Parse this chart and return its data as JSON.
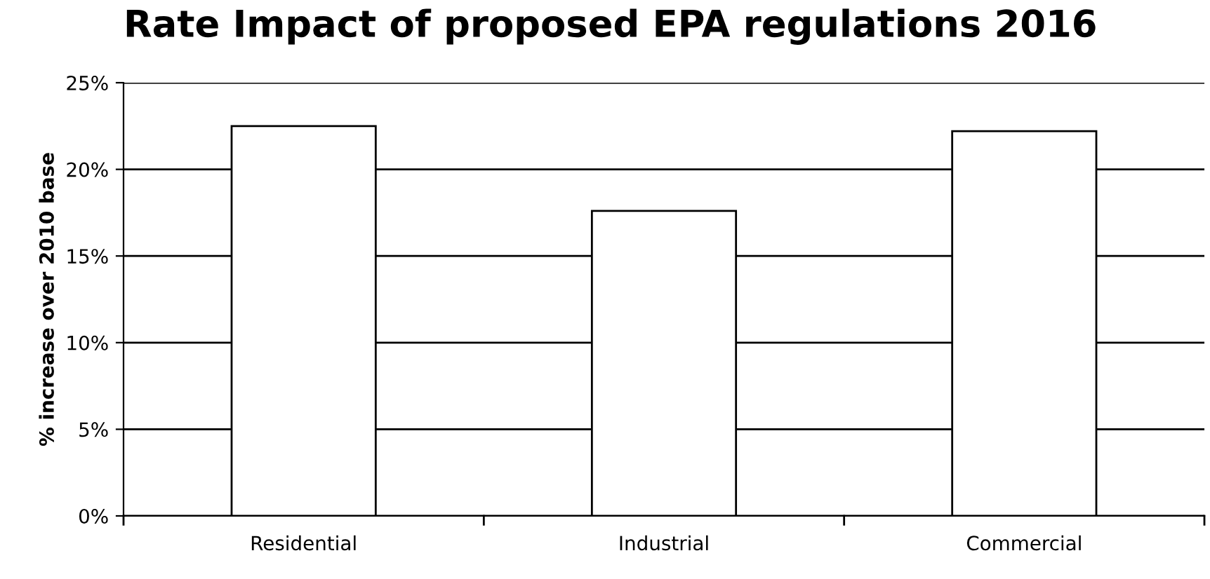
{
  "chart_data": {
    "type": "bar",
    "title": "Rate Impact of proposed EPA regulations 2016",
    "ylabel": "% increase over 2010 base",
    "categories": [
      "Residential",
      "Industrial",
      "Commercial"
    ],
    "values": [
      22.5,
      17.6,
      22.2
    ],
    "color": "#ffffff",
    "ylim": [
      0,
      25
    ],
    "yticks": [
      {
        "value": 0,
        "label": "0%"
      },
      {
        "value": 5,
        "label": "5%"
      },
      {
        "value": 10,
        "label": "10%"
      },
      {
        "value": 15,
        "label": "15%"
      },
      {
        "value": 20,
        "label": "20%"
      },
      {
        "value": 25,
        "label": "25%"
      }
    ],
    "grid": "y",
    "legend": false
  }
}
